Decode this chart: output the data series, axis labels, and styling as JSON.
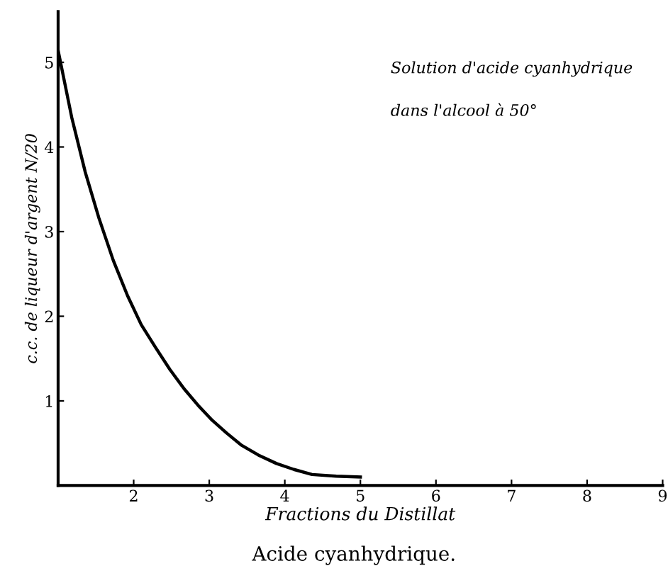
{
  "chart_data": {
    "type": "line",
    "xlabel": "Fractions du Distillat",
    "ylabel": "c.c. de liqueur d'argent N/20",
    "annotations": [
      "Solution d'acide cyanhydrique",
      "dans l'alcool à 50°",
      "Acide cyanhydrique."
    ],
    "series": [
      {
        "color": "#000000",
        "x": [
          1,
          1.18,
          1.36,
          1.54,
          1.73,
          1.92,
          2.1,
          2.29,
          2.48,
          2.67,
          2.85,
          3.04,
          3.23,
          3.42,
          3.65,
          3.89,
          4.12,
          4.36,
          4.68,
          5.0
        ],
        "values": [
          5.14,
          4.35,
          3.7,
          3.16,
          2.66,
          2.24,
          1.9,
          1.63,
          1.37,
          1.14,
          0.95,
          0.77,
          0.62,
          0.48,
          0.36,
          0.26,
          0.19,
          0.13,
          0.11,
          0.1
        ]
      }
    ],
    "xlim": [
      1,
      9
    ],
    "ylim": [
      0,
      5.6
    ],
    "xticks": [
      2,
      3,
      4,
      5,
      6,
      7,
      8,
      9
    ],
    "yticks": [
      1,
      2,
      3,
      4,
      5
    ],
    "grid": false,
    "legend": false,
    "marker": "none",
    "line_style": "solid"
  }
}
